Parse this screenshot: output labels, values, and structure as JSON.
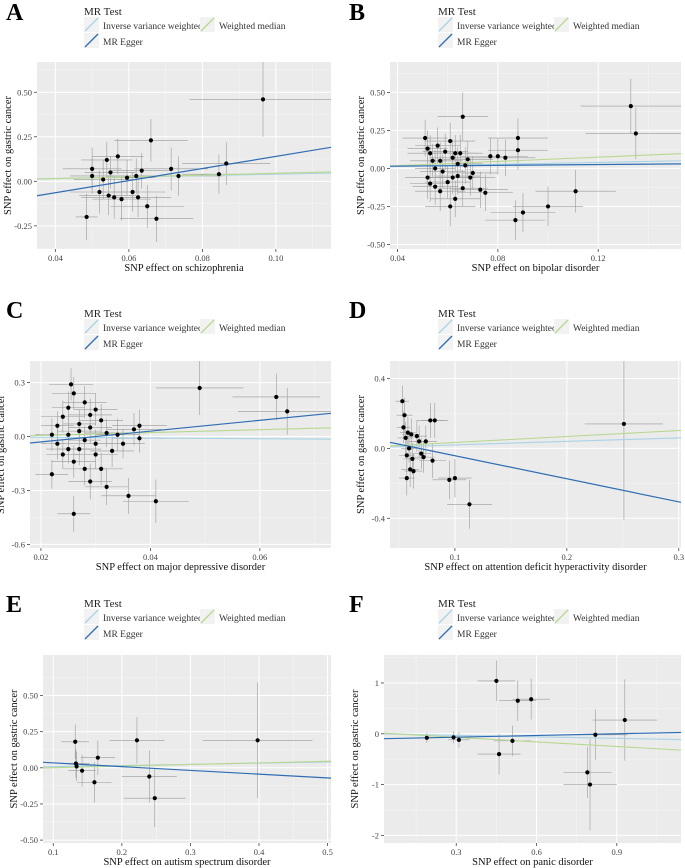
{
  "legend": {
    "title": "MR Test",
    "items": [
      {
        "label": "Inverse variance weighted",
        "color": "#a9d3e6"
      },
      {
        "label": "Weighted median",
        "color": "#b9d88f"
      },
      {
        "label": "MR Egger",
        "color": "#2e6db3"
      }
    ]
  },
  "chart_data": [
    {
      "panel": "A",
      "type": "scatter",
      "xlabel": "SNP effect on schizophrenia",
      "ylabel": "SNP effect on gastric cancer",
      "xlim": [
        0.035,
        0.115
      ],
      "ylim": [
        -0.38,
        0.67
      ],
      "xticks": [
        0.04,
        0.06,
        0.08,
        0.1
      ],
      "xtick_labels": [
        "0.04",
        "0.06",
        "0.08",
        "0.10"
      ],
      "yticks": [
        -0.25,
        0,
        0.25,
        0.5
      ],
      "ytick_labels": [
        "-0.25",
        "0.00",
        "0.25",
        "0.50"
      ],
      "lines": {
        "ivw": [
          0,
          0.4
        ],
        "median": [
          -0.005,
          0.5
        ],
        "egger": [
          -0.2,
          3.4
        ]
      },
      "points": [
        [
          0.0485,
          -0.2,
          0.003,
          0.13
        ],
        [
          0.05,
          0.07,
          0.008,
          0.12
        ],
        [
          0.05,
          0.03,
          0.006,
          0.1
        ],
        [
          0.052,
          -0.06,
          0.008,
          0.12
        ],
        [
          0.053,
          0.01,
          0.008,
          0.11
        ],
        [
          0.054,
          0.12,
          0.007,
          0.1
        ],
        [
          0.0545,
          -0.08,
          0.008,
          0.11
        ],
        [
          0.055,
          0.05,
          0.007,
          0.09
        ],
        [
          0.056,
          -0.09,
          0.009,
          0.12
        ],
        [
          0.057,
          0.14,
          0.007,
          0.1
        ],
        [
          0.058,
          -0.1,
          0.008,
          0.12
        ],
        [
          0.0595,
          0.02,
          0.008,
          0.1
        ],
        [
          0.061,
          -0.06,
          0.009,
          0.11
        ],
        [
          0.062,
          0.03,
          0.008,
          0.1
        ],
        [
          0.0625,
          -0.09,
          0.009,
          0.11
        ],
        [
          0.0635,
          0.06,
          0.008,
          0.1
        ],
        [
          0.065,
          -0.14,
          0.01,
          0.12
        ],
        [
          0.066,
          0.23,
          0.01,
          0.12
        ],
        [
          0.0675,
          -0.21,
          0.01,
          0.13
        ],
        [
          0.0715,
          0.07,
          0.01,
          0.12
        ],
        [
          0.0735,
          0.03,
          0.012,
          0.11
        ],
        [
          0.0845,
          0.04,
          0.01,
          0.11
        ],
        [
          0.0865,
          0.1,
          0.012,
          0.12
        ],
        [
          0.0965,
          0.46,
          0.02,
          0.21
        ]
      ]
    },
    {
      "panel": "B",
      "type": "scatter",
      "xlabel": "SNP effect on bipolar disorder",
      "ylabel": "SNP effect on gastric cancer",
      "xlim": [
        0.037,
        0.153
      ],
      "ylim": [
        -0.53,
        0.7
      ],
      "xticks": [
        0.04,
        0.08,
        0.12
      ],
      "xtick_labels": [
        "0.04",
        "0.08",
        "0.12"
      ],
      "yticks": [
        -0.5,
        -0.25,
        0,
        0.25,
        0.5
      ],
      "ytick_labels": [
        "-0.50",
        "-0.25",
        "0.00",
        "0.25",
        "0.50"
      ],
      "lines": {
        "ivw": [
          0,
          0.33
        ],
        "median": [
          -0.01,
          0.7
        ],
        "egger": [
          0.01,
          0.13
        ]
      },
      "points": [
        [
          0.051,
          0.2,
          0.009,
          0.12
        ],
        [
          0.052,
          0.13,
          0.008,
          0.12
        ],
        [
          0.053,
          0.1,
          0.009,
          0.12
        ],
        [
          0.052,
          -0.06,
          0.009,
          0.14
        ],
        [
          0.053,
          -0.1,
          0.008,
          0.12
        ],
        [
          0.054,
          0.05,
          0.009,
          0.11
        ],
        [
          0.055,
          0.0,
          0.008,
          0.12
        ],
        [
          0.056,
          0.15,
          0.009,
          0.12
        ],
        [
          0.057,
          -0.15,
          0.01,
          0.13
        ],
        [
          0.057,
          0.05,
          0.009,
          0.12
        ],
        [
          0.058,
          -0.02,
          0.009,
          0.11
        ],
        [
          0.059,
          0.11,
          0.009,
          0.12
        ],
        [
          0.06,
          -0.09,
          0.009,
          0.11
        ],
        [
          0.061,
          0.18,
          0.01,
          0.12
        ],
        [
          0.062,
          0.07,
          0.009,
          0.12
        ],
        [
          0.063,
          -0.2,
          0.01,
          0.12
        ],
        [
          0.064,
          0.03,
          0.01,
          0.11
        ],
        [
          0.065,
          0.1,
          0.009,
          0.12
        ],
        [
          0.066,
          0.34,
          0.01,
          0.16
        ],
        [
          0.064,
          -0.05,
          0.009,
          0.12
        ],
        [
          0.066,
          -0.13,
          0.01,
          0.12
        ],
        [
          0.067,
          0.02,
          0.01,
          0.12
        ],
        [
          0.068,
          0.06,
          0.01,
          0.12
        ],
        [
          0.069,
          -0.06,
          0.01,
          0.12
        ],
        [
          0.062,
          -0.06,
          0.009,
          0.11
        ],
        [
          0.063,
          0.1,
          0.009,
          0.12
        ],
        [
          0.061,
          -0.25,
          0.01,
          0.13
        ],
        [
          0.055,
          -0.12,
          0.009,
          0.12
        ],
        [
          0.07,
          -0.03,
          0.01,
          0.11
        ],
        [
          0.073,
          -0.14,
          0.011,
          0.12
        ],
        [
          0.075,
          -0.16,
          0.011,
          0.12
        ],
        [
          0.077,
          0.08,
          0.012,
          0.12
        ],
        [
          0.08,
          0.08,
          0.012,
          0.12
        ],
        [
          0.083,
          0.07,
          0.012,
          0.12
        ],
        [
          0.087,
          -0.34,
          0.012,
          0.13
        ],
        [
          0.088,
          0.2,
          0.012,
          0.13
        ],
        [
          0.088,
          0.12,
          0.012,
          0.13
        ],
        [
          0.09,
          -0.29,
          0.013,
          0.13
        ],
        [
          0.1,
          -0.25,
          0.014,
          0.13
        ],
        [
          0.111,
          -0.15,
          0.016,
          0.14
        ],
        [
          0.133,
          0.41,
          0.02,
          0.18
        ],
        [
          0.135,
          0.23,
          0.02,
          0.17
        ]
      ]
    },
    {
      "panel": "C",
      "type": "scatter",
      "xlabel": "SNP effect on major depressive disorder",
      "ylabel": "SNP effect on gastric cancer",
      "xlim": [
        0.018,
        0.073
      ],
      "ylim": [
        -0.62,
        0.42
      ],
      "xticks": [
        0.02,
        0.04,
        0.06
      ],
      "xtick_labels": [
        "0.02",
        "0.04",
        "0.06"
      ],
      "yticks": [
        -0.6,
        -0.3,
        0,
        0.3
      ],
      "ytick_labels": [
        "-0.6",
        "-0.3",
        "0.0",
        "0.3"
      ],
      "lines": {
        "ivw": [
          0,
          -0.2
        ],
        "median": [
          -0.01,
          0.8
        ],
        "egger": [
          -0.09,
          3.0
        ]
      },
      "points": [
        [
          0.022,
          -0.21,
          0.003,
          0.08
        ],
        [
          0.022,
          0.01,
          0.003,
          0.09
        ],
        [
          0.023,
          -0.04,
          0.003,
          0.09
        ],
        [
          0.023,
          0.06,
          0.003,
          0.08
        ],
        [
          0.024,
          0.11,
          0.004,
          0.09
        ],
        [
          0.024,
          -0.1,
          0.003,
          0.08
        ],
        [
          0.025,
          0.16,
          0.003,
          0.09
        ],
        [
          0.025,
          -0.07,
          0.004,
          0.08
        ],
        [
          0.025,
          0.01,
          0.003,
          0.09
        ],
        [
          0.0255,
          0.29,
          0.004,
          0.09
        ],
        [
          0.026,
          0.24,
          0.004,
          0.09
        ],
        [
          0.026,
          -0.43,
          0.003,
          0.1
        ],
        [
          0.026,
          -0.14,
          0.004,
          0.09
        ],
        [
          0.027,
          0.03,
          0.004,
          0.08
        ],
        [
          0.027,
          -0.07,
          0.004,
          0.09
        ],
        [
          0.027,
          0.07,
          0.003,
          0.08
        ],
        [
          0.028,
          -0.18,
          0.004,
          0.09
        ],
        [
          0.028,
          0.19,
          0.004,
          0.09
        ],
        [
          0.028,
          -0.02,
          0.003,
          0.08
        ],
        [
          0.029,
          0.12,
          0.004,
          0.09
        ],
        [
          0.029,
          -0.25,
          0.004,
          0.1
        ],
        [
          0.029,
          0.05,
          0.004,
          0.09
        ],
        [
          0.03,
          -0.04,
          0.004,
          0.08
        ],
        [
          0.03,
          0.15,
          0.004,
          0.09
        ],
        [
          0.03,
          -0.1,
          0.004,
          0.08
        ],
        [
          0.031,
          0.09,
          0.004,
          0.09
        ],
        [
          0.031,
          -0.18,
          0.004,
          0.09
        ],
        [
          0.032,
          0.02,
          0.004,
          0.08
        ],
        [
          0.032,
          -0.28,
          0.004,
          0.1
        ],
        [
          0.033,
          -0.08,
          0.004,
          0.09
        ],
        [
          0.034,
          0.01,
          0.004,
          0.09
        ],
        [
          0.035,
          -0.04,
          0.004,
          0.08
        ],
        [
          0.036,
          -0.33,
          0.005,
          0.1
        ],
        [
          0.037,
          0.04,
          0.005,
          0.09
        ],
        [
          0.038,
          0.06,
          0.005,
          0.09
        ],
        [
          0.038,
          -0.01,
          0.005,
          0.08
        ],
        [
          0.041,
          -0.36,
          0.006,
          0.12
        ],
        [
          0.049,
          0.27,
          0.008,
          0.15
        ],
        [
          0.063,
          0.22,
          0.008,
          0.13
        ],
        [
          0.065,
          0.14,
          0.009,
          0.13
        ]
      ]
    },
    {
      "panel": "D",
      "type": "scatter",
      "xlabel": "SNP effect on attention deficit hyperactivity disorder",
      "ylabel": "SNP effect on gastric cancer",
      "xlim": [
        0.042,
        0.302
      ],
      "ylim": [
        -0.57,
        0.5
      ],
      "xticks": [
        0.1,
        0.2,
        0.3
      ],
      "xtick_labels": [
        "0.1",
        "0.2",
        "0.3"
      ],
      "yticks": [
        -0.4,
        0,
        0.4
      ],
      "ytick_labels": [
        "-0.4",
        "0.0",
        "0.4"
      ],
      "lines": {
        "ivw": [
          0,
          0.2
        ],
        "median": [
          0,
          0.34
        ],
        "egger": [
          0.09,
          -1.32
        ]
      },
      "points": [
        [
          0.053,
          0.27,
          0.006,
          0.09
        ],
        [
          0.054,
          0.12,
          0.006,
          0.09
        ],
        [
          0.055,
          0.19,
          0.007,
          0.1
        ],
        [
          0.056,
          0.06,
          0.007,
          0.09
        ],
        [
          0.057,
          -0.17,
          0.007,
          0.1
        ],
        [
          0.057,
          -0.04,
          0.007,
          0.09
        ],
        [
          0.058,
          0.09,
          0.007,
          0.09
        ],
        [
          0.059,
          0.0,
          0.007,
          0.08
        ],
        [
          0.06,
          -0.12,
          0.008,
          0.1
        ],
        [
          0.061,
          0.08,
          0.008,
          0.09
        ],
        [
          0.062,
          -0.06,
          0.008,
          0.09
        ],
        [
          0.063,
          -0.13,
          0.008,
          0.1
        ],
        [
          0.066,
          0.07,
          0.009,
          0.09
        ],
        [
          0.068,
          0.04,
          0.009,
          0.09
        ],
        [
          0.07,
          -0.03,
          0.009,
          0.09
        ],
        [
          0.072,
          -0.05,
          0.01,
          0.09
        ],
        [
          0.074,
          0.04,
          0.01,
          0.09
        ],
        [
          0.078,
          0.16,
          0.012,
          0.1
        ],
        [
          0.08,
          -0.07,
          0.012,
          0.1
        ],
        [
          0.082,
          0.16,
          0.012,
          0.1
        ],
        [
          0.095,
          -0.18,
          0.015,
          0.11
        ],
        [
          0.1,
          -0.17,
          0.015,
          0.11
        ],
        [
          0.113,
          -0.32,
          0.02,
          0.14
        ],
        [
          0.251,
          0.14,
          0.035,
          0.55
        ]
      ]
    },
    {
      "panel": "E",
      "type": "scatter",
      "xlabel": "SNP effect on autism spectrum disorder",
      "ylabel": "SNP effect on gastric cancer",
      "xlim": [
        0.085,
        0.505
      ],
      "ylim": [
        -0.52,
        0.78
      ],
      "xticks": [
        0.1,
        0.2,
        0.3,
        0.4,
        0.5
      ],
      "xtick_labels": [
        "0.1",
        "0.2",
        "0.3",
        "0.4",
        "0.5"
      ],
      "yticks": [
        -0.5,
        -0.25,
        0,
        0.25,
        0.5
      ],
      "ytick_labels": [
        "-0.50",
        "-0.25",
        "0.00",
        "0.25",
        "0.50"
      ],
      "lines": {
        "ivw": [
          0,
          0.08
        ],
        "median": [
          -0.01,
          0.11
        ],
        "egger": [
          0.06,
          -0.26
        ]
      },
      "points": [
        [
          0.132,
          0.18,
          0.02,
          0.12
        ],
        [
          0.133,
          0.03,
          0.02,
          0.1
        ],
        [
          0.134,
          0.01,
          0.018,
          0.1
        ],
        [
          0.142,
          -0.02,
          0.02,
          0.11
        ],
        [
          0.16,
          -0.1,
          0.025,
          0.14
        ],
        [
          0.165,
          0.07,
          0.025,
          0.12
        ],
        [
          0.222,
          0.19,
          0.04,
          0.16
        ],
        [
          0.24,
          -0.06,
          0.04,
          0.18
        ],
        [
          0.248,
          -0.21,
          0.045,
          0.2
        ],
        [
          0.398,
          0.19,
          0.08,
          0.4
        ]
      ]
    },
    {
      "panel": "F",
      "type": "scatter",
      "xlabel": "SNP effect on panic disorder",
      "ylabel": "SNP effect on gastric cancer",
      "xlim": [
        0.03,
        1.14
      ],
      "ylim": [
        -2.15,
        1.55
      ],
      "xticks": [
        0.3,
        0.6,
        0.9
      ],
      "xtick_labels": [
        "0.3",
        "0.6",
        "0.9"
      ],
      "yticks": [
        -2,
        -1,
        0,
        1
      ],
      "ytick_labels": [
        "-2",
        "-1",
        "0",
        "1"
      ],
      "lines": {
        "ivw": [
          0,
          -0.1
        ],
        "median": [
          0.02,
          -0.3
        ],
        "egger": [
          -0.1,
          0.11
        ]
      },
      "points": [
        [
          0.19,
          -0.08,
          0.02,
          0.1
        ],
        [
          0.29,
          -0.07,
          0.03,
          0.12
        ],
        [
          0.31,
          -0.12,
          0.04,
          0.15
        ],
        [
          0.45,
          1.04,
          0.07,
          0.4
        ],
        [
          0.46,
          -0.4,
          0.08,
          0.4
        ],
        [
          0.51,
          -0.14,
          0.07,
          0.3
        ],
        [
          0.53,
          0.65,
          0.07,
          0.4
        ],
        [
          0.58,
          0.68,
          0.07,
          0.4
        ],
        [
          0.79,
          -0.76,
          0.09,
          0.5
        ],
        [
          0.8,
          -1.0,
          0.1,
          0.9
        ],
        [
          0.82,
          -0.02,
          0.12,
          0.5
        ],
        [
          0.93,
          0.27,
          0.12,
          0.8
        ]
      ]
    }
  ]
}
